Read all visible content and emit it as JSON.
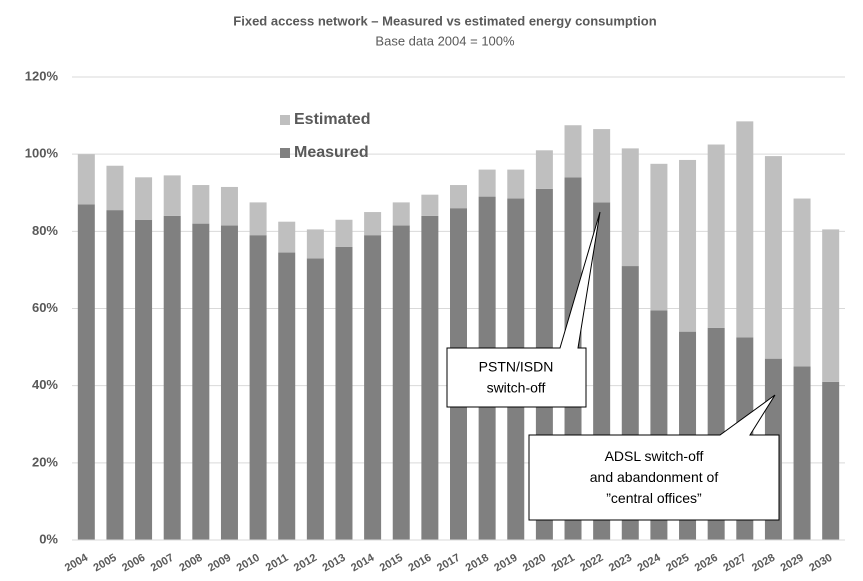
{
  "chart_data": {
    "type": "stacked_bar",
    "title": "Fixed access network – Measured vs estimated energy consumption",
    "subtitle": "Base data 2004 = 100%",
    "categories": [
      "2004",
      "2005",
      "2006",
      "2007",
      "2008",
      "2009",
      "2010",
      "2011",
      "2012",
      "2013",
      "2014",
      "2015",
      "2016",
      "2017",
      "2018",
      "2019",
      "2020",
      "2021",
      "2022",
      "2023",
      "2024",
      "2025",
      "2026",
      "2027",
      "2028",
      "2029",
      "2030"
    ],
    "series": [
      {
        "name": "Measured",
        "color": "#808080",
        "values": [
          87,
          85.5,
          83,
          84,
          82,
          81.5,
          79,
          74.5,
          73,
          76,
          79,
          81.5,
          84,
          86,
          89,
          88.5,
          91,
          94,
          87.5,
          71,
          59.5,
          54,
          55,
          52.5,
          47,
          45,
          41
        ]
      },
      {
        "name": "Estimated",
        "color": "#bfbfbf",
        "values": [
          13,
          11.5,
          11,
          10.5,
          10,
          10,
          8.5,
          8,
          7.5,
          7,
          6,
          6,
          5.5,
          6,
          7,
          7.5,
          10,
          13.5,
          19,
          30.5,
          38,
          44.5,
          47.5,
          56,
          52.5,
          43.5,
          39.5
        ]
      }
    ],
    "ylim": [
      0,
      120
    ],
    "yticks": [
      {
        "value": 0,
        "label": "0%"
      },
      {
        "value": 20,
        "label": "20%"
      },
      {
        "value": 40,
        "label": "40%"
      },
      {
        "value": 60,
        "label": "60%"
      },
      {
        "value": 80,
        "label": "80%"
      },
      {
        "value": 100,
        "label": "100%"
      },
      {
        "value": 120,
        "label": "120%"
      }
    ],
    "grid": true,
    "legend": "upper-left",
    "annotations": [
      {
        "lines": [
          "PSTN/ISDN",
          "switch-off"
        ]
      },
      {
        "lines": [
          "ADSL switch-off",
          "and abandonment of",
          "”central offices”"
        ]
      }
    ]
  }
}
